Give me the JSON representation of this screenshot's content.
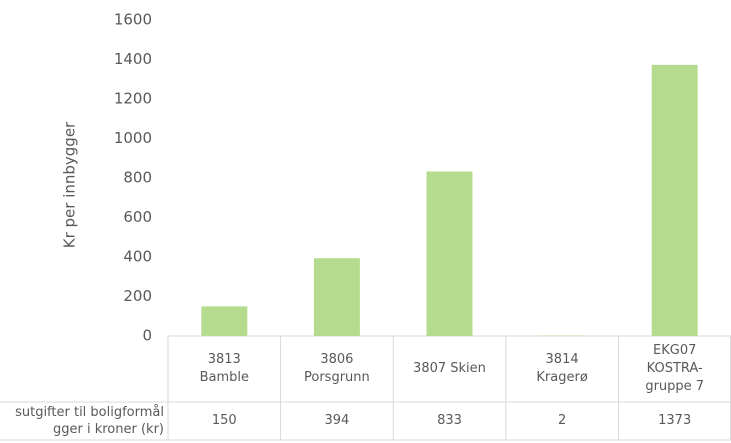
{
  "chart_data": {
    "type": "bar",
    "y_axis_label": "Kr per innbygger",
    "categories": [
      "3813\nBamble",
      "3806\nPorsgrunn",
      "3807 Skien",
      "3814\nKragerø",
      "EKG07\nKOSTRA-\ngruppe 7"
    ],
    "series": [
      {
        "name": "sutgifter til boligformål\ngger i kroner (kr)",
        "color": "#b5dc8e",
        "values": [
          150,
          394,
          833,
          2,
          1373
        ]
      }
    ],
    "ylim": [
      0,
      1600
    ],
    "yticks": [
      0,
      200,
      400,
      600,
      800,
      1000,
      1200,
      1400,
      1600
    ],
    "grid": false
  }
}
